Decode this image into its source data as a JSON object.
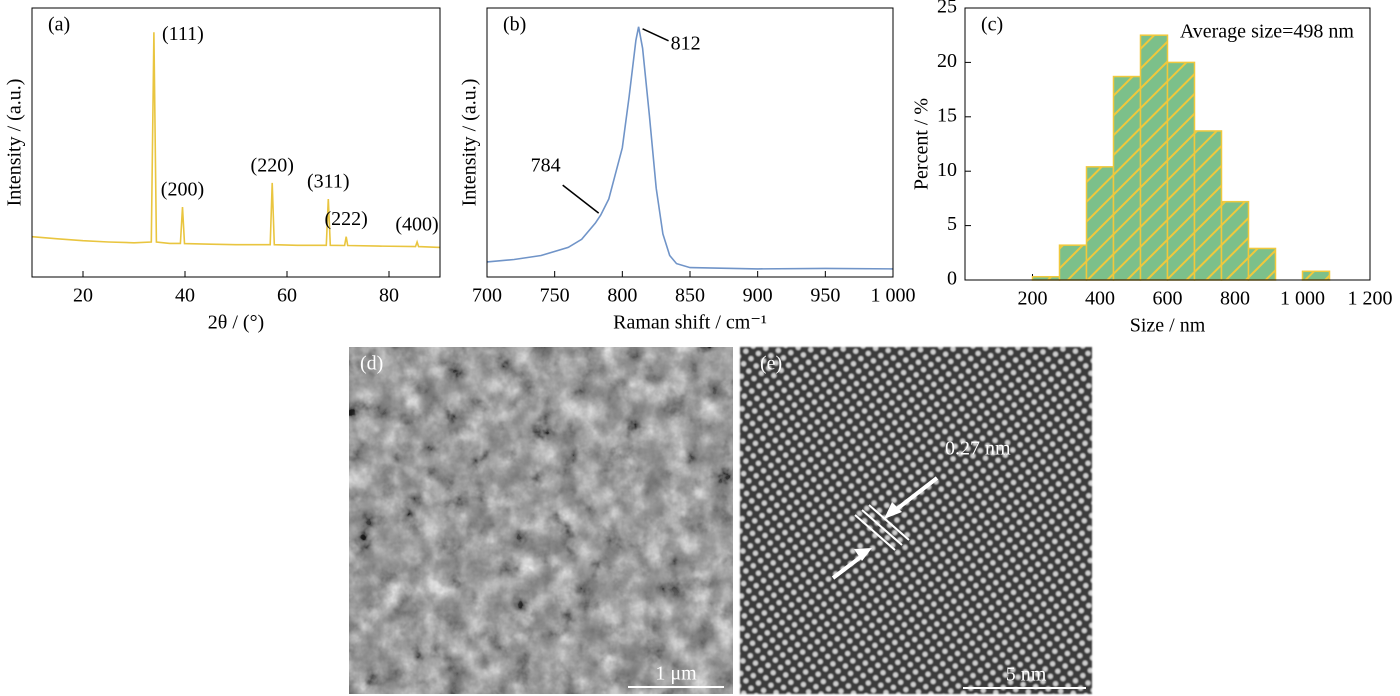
{
  "chart_data": [
    {
      "type": "line",
      "panel_label": "(a)",
      "x_label": "2θ / (°)",
      "y_label": "Intensity / (a.u.)",
      "color": "#e9c53f",
      "xlim": [
        10,
        90
      ],
      "xticks": [
        20,
        40,
        60,
        80
      ],
      "ylim": [
        0,
        1
      ],
      "x": [
        10,
        15,
        20,
        25,
        30,
        33.4,
        33.9,
        34.4,
        37,
        39.1,
        39.5,
        39.9,
        45,
        50,
        56.7,
        57.1,
        57.5,
        62,
        67.7,
        68.1,
        68.5,
        71.3,
        71.6,
        71.9,
        78,
        85.2,
        85.5,
        85.8,
        90
      ],
      "values": [
        0.15,
        0.142,
        0.135,
        0.13,
        0.127,
        0.13,
        0.91,
        0.13,
        0.125,
        0.125,
        0.26,
        0.124,
        0.122,
        0.12,
        0.12,
        0.35,
        0.12,
        0.118,
        0.118,
        0.29,
        0.118,
        0.117,
        0.15,
        0.117,
        0.115,
        0.113,
        0.13,
        0.113,
        0.11
      ],
      "annotations": [
        {
          "text": "(111)",
          "x": 33.9,
          "y": 0.91
        },
        {
          "text": "(200)",
          "x": 39.5,
          "y": 0.26
        },
        {
          "text": "(220)",
          "x": 57.1,
          "y": 0.35
        },
        {
          "text": "(311)",
          "x": 68.1,
          "y": 0.29
        },
        {
          "text": "(222)",
          "x": 71.6,
          "y": 0.15
        },
        {
          "text": "(400)",
          "x": 85.5,
          "y": 0.13
        }
      ]
    },
    {
      "type": "line",
      "panel_label": "(b)",
      "x_label": "Raman shift / cm⁻¹",
      "y_label": "Intensity / (a.u.)",
      "color": "#7094c8",
      "xlim": [
        700,
        1000
      ],
      "xticks": [
        700,
        750,
        800,
        850,
        900,
        950,
        {
          "value": 1000,
          "label": "1 000"
        }
      ],
      "ylim": [
        0,
        1
      ],
      "x": [
        700,
        720,
        740,
        760,
        770,
        780,
        784,
        790,
        800,
        805,
        810,
        812,
        815,
        820,
        825,
        830,
        835,
        840,
        850,
        900,
        950,
        1000
      ],
      "values": [
        0.056,
        0.065,
        0.08,
        0.11,
        0.14,
        0.2,
        0.23,
        0.29,
        0.48,
        0.67,
        0.88,
        0.93,
        0.85,
        0.6,
        0.33,
        0.16,
        0.08,
        0.05,
        0.035,
        0.03,
        0.032,
        0.03
      ],
      "annotations": [
        {
          "text": "812",
          "x": 812,
          "y": 0.93
        },
        {
          "text": "784",
          "x": 784,
          "y": 0.23
        }
      ]
    },
    {
      "type": "histogram",
      "panel_label": "(c)",
      "x_label": "Size / nm",
      "y_label": "Percent / %",
      "color": "#7cc08a",
      "edge_color": "#f0c83c",
      "annotation": "Average size=498 nm",
      "xlim": [
        0,
        1200
      ],
      "xticks": [
        200,
        400,
        600,
        800,
        {
          "value": 1000,
          "label": "1 000"
        },
        {
          "value": 1200,
          "label": "1 200"
        }
      ],
      "ylim": [
        0,
        25
      ],
      "yticks": [
        0,
        5,
        10,
        15,
        20,
        25
      ],
      "bins": [
        200,
        280,
        360,
        440,
        520,
        600,
        680,
        760,
        840,
        920,
        1000,
        1080,
        1160
      ],
      "values": [
        0.3,
        3.2,
        10.4,
        18.7,
        22.5,
        20,
        13.7,
        7.2,
        2.9,
        0,
        0.8,
        0,
        0.15
      ]
    }
  ],
  "images": [
    {
      "panel_label": "(d)",
      "scale_bar": "1 μm"
    },
    {
      "panel_label": "(e)",
      "scale_bar": "5 nm",
      "annotation": "0.27 nm"
    }
  ]
}
